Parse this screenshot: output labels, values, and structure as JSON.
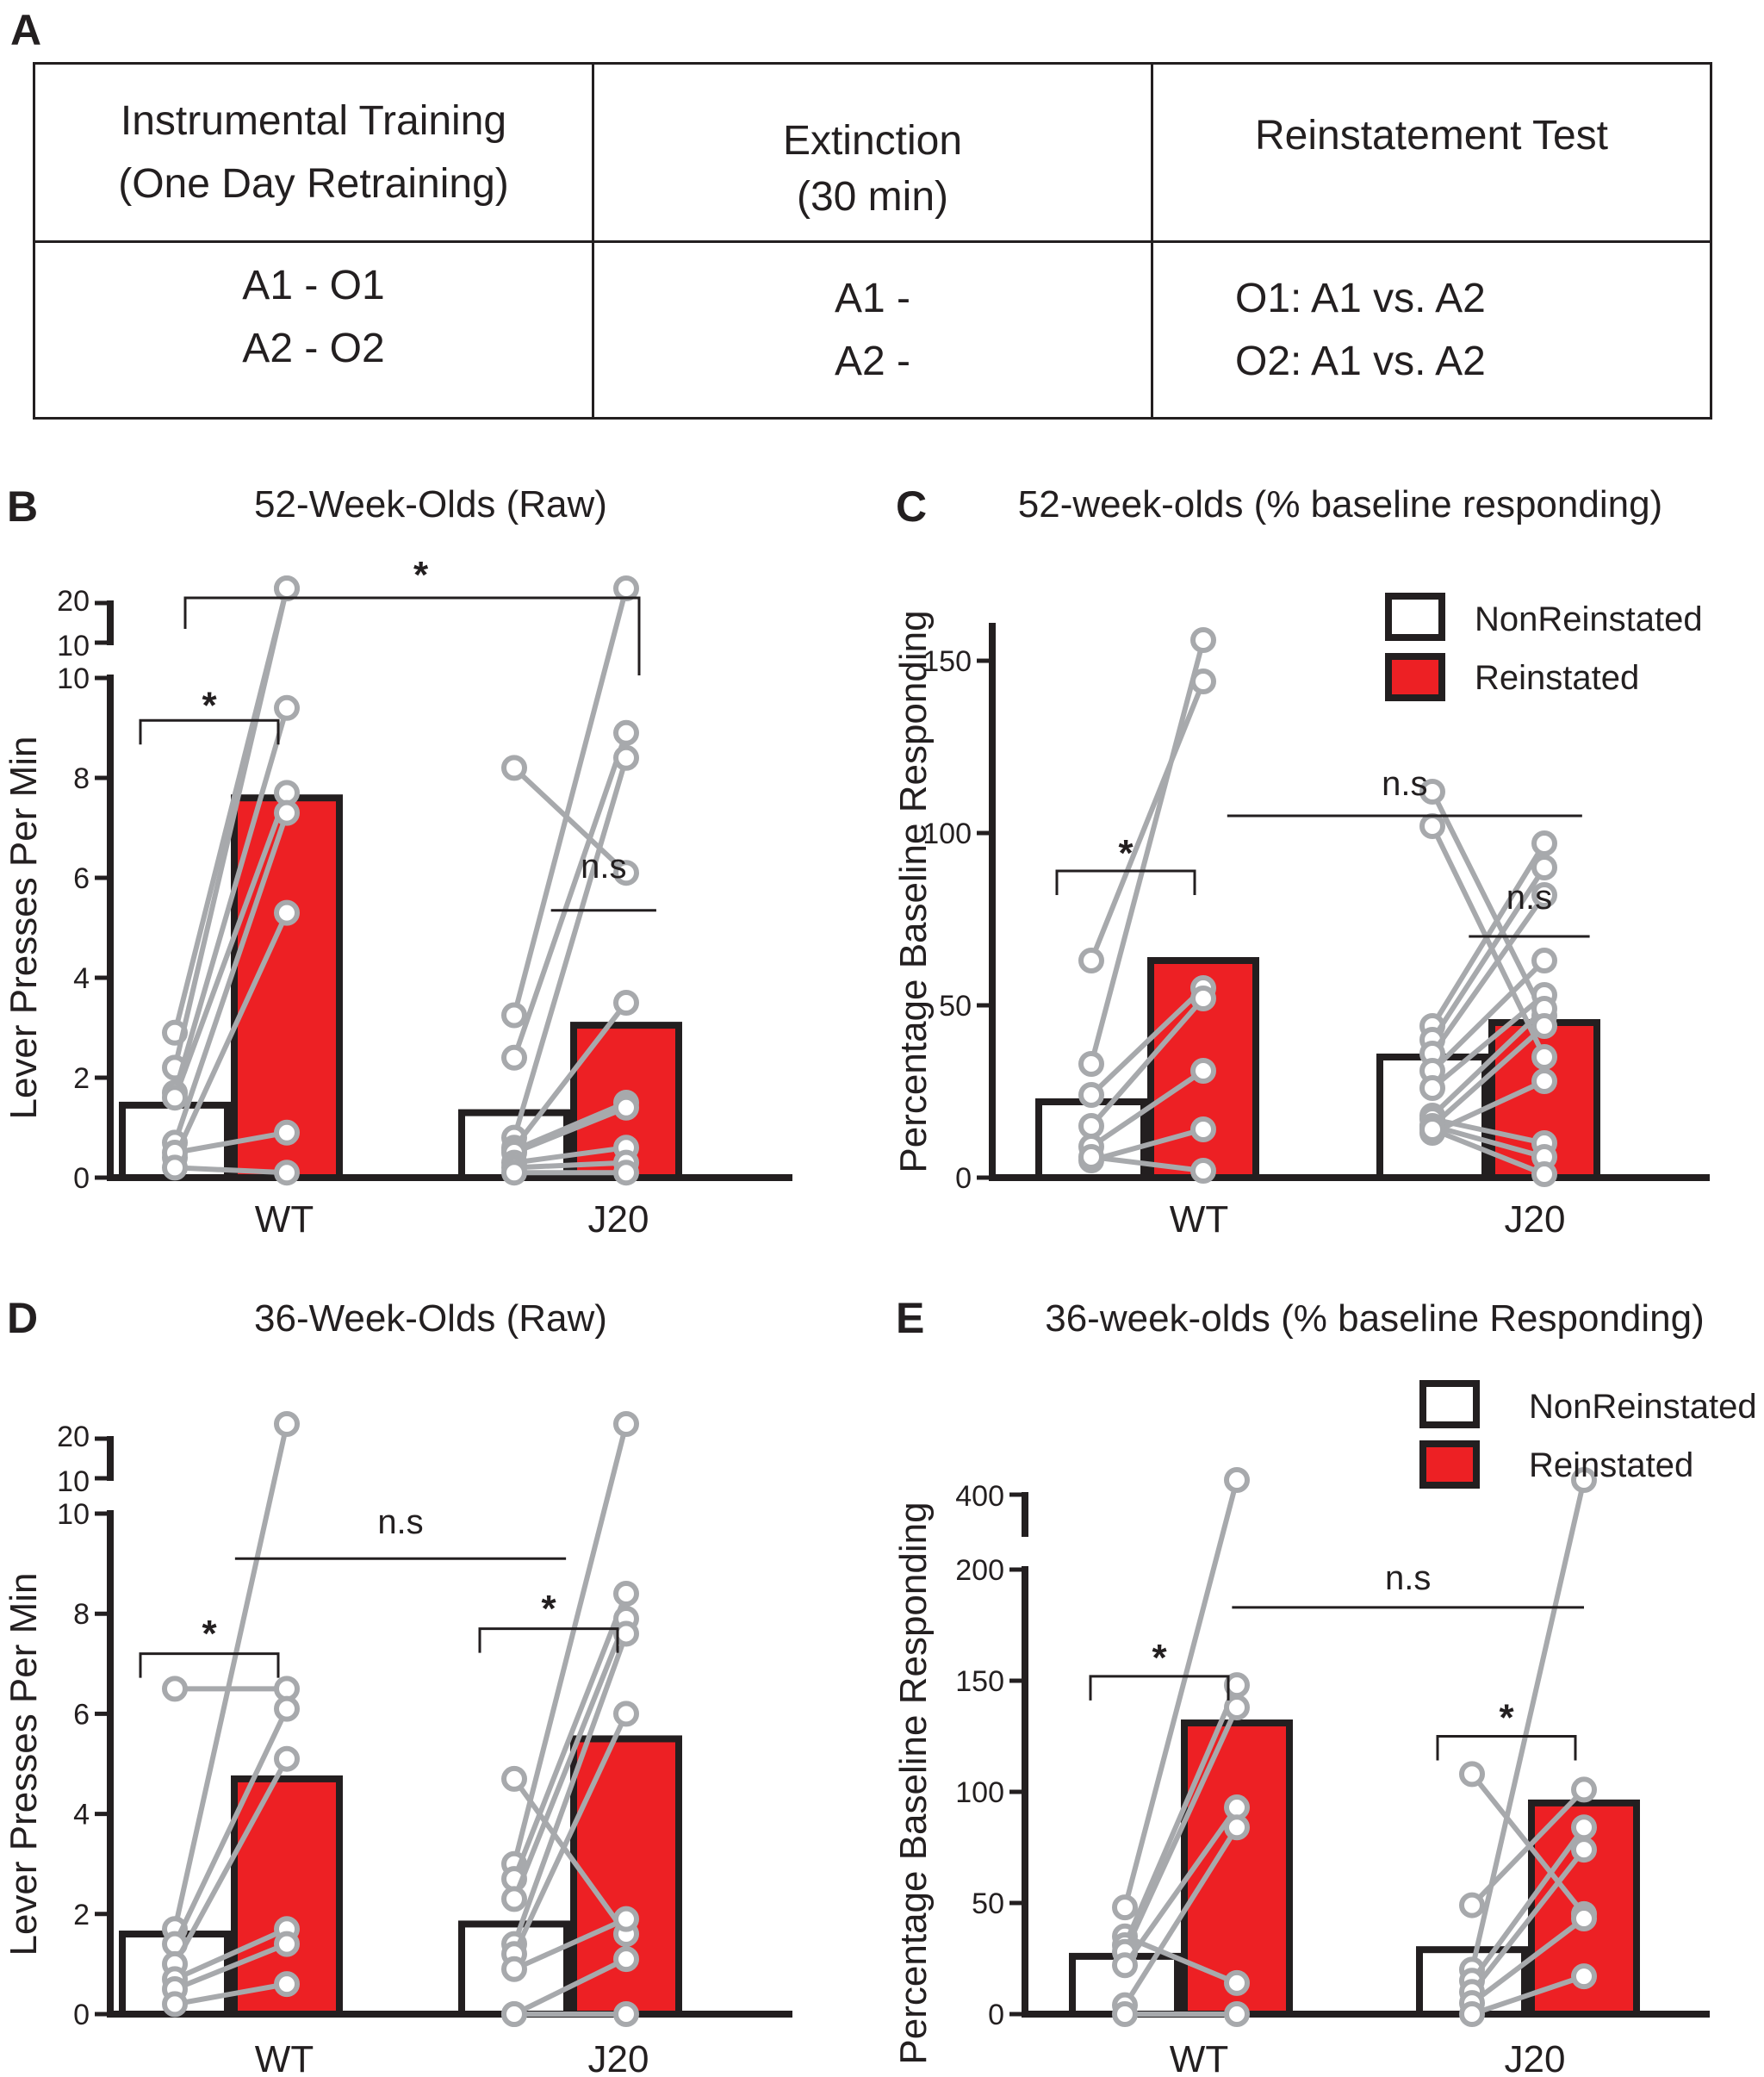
{
  "panels": {
    "A": "A",
    "B": "B",
    "C": "C",
    "D": "D",
    "E": "E"
  },
  "table": {
    "header": {
      "col1": [
        "Instrumental Training",
        "(One Day Retraining)"
      ],
      "col2": [
        "Extinction",
        "(30 min)"
      ],
      "col3": [
        "Reinstatement Test"
      ]
    },
    "body": {
      "col1": [
        "A1 - O1",
        "A2 - O2"
      ],
      "col2": [
        "A1 -",
        "A2 -"
      ],
      "col3": [
        "O1: A1 vs. A2",
        "O2: A1 vs. A2"
      ]
    }
  },
  "colors": {
    "nonreinstated": "#ffffff",
    "reinstated": "#ed2024",
    "outline": "#231f20",
    "points": "#a7a9ac"
  },
  "chart_data": [
    {
      "id": "B",
      "type": "bar",
      "title": "52-Week-Olds (Raw)",
      "ylabel": "Lever Presses Per Min",
      "xlabel": "",
      "categories": [
        "WT",
        "J20"
      ],
      "series": [
        {
          "name": "NonReinstated",
          "values": [
            1.45,
            1.3
          ]
        },
        {
          "name": "Reinstated",
          "values": [
            7.6,
            3.05
          ]
        }
      ],
      "ylim": [
        0,
        10
      ],
      "yticks": [
        0,
        2,
        4,
        6,
        8,
        10
      ],
      "break": {
        "labels": [
          "10",
          "20"
        ]
      },
      "pairs": [
        [
          [
            2.9,
            17.5
          ],
          [
            2.2,
            16.5
          ],
          [
            1.7,
            9.4
          ],
          [
            1.6,
            7.7
          ],
          [
            0.7,
            7.3
          ],
          [
            0.4,
            5.3
          ],
          [
            0.5,
            0.9
          ],
          [
            0.2,
            0.1
          ]
        ],
        [
          [
            8.2,
            6.1
          ],
          [
            3.25,
            16.5
          ],
          [
            2.4,
            8.9
          ],
          [
            0.8,
            8.4
          ],
          [
            0.6,
            3.5
          ],
          [
            0.55,
            1.5
          ],
          [
            0.5,
            1.4
          ],
          [
            0.3,
            0.6
          ],
          [
            0.2,
            0.3
          ],
          [
            0.1,
            0.1
          ]
        ]
      ],
      "annotations": [
        {
          "text": "*",
          "type": "bracket",
          "x1": 0,
          "x2": 1,
          "y": 9.15,
          "lbl": 9.3
        },
        {
          "text": "n.s",
          "type": "line",
          "x1": 2.5,
          "x2": 3.2,
          "y": 5.35,
          "lbl": 6.0
        },
        {
          "text": "*",
          "type": "topbracket",
          "x1": 0,
          "x2": 3,
          "y": 1,
          "lbl": 1
        }
      ]
    },
    {
      "id": "C",
      "type": "bar",
      "title": "52-week-olds (% baseline responding)",
      "ylabel": "Percentage Baseline Responding",
      "xlabel": "",
      "categories": [
        "WT",
        "J20"
      ],
      "series": [
        {
          "name": "NonReinstated",
          "values": [
            22,
            35
          ]
        },
        {
          "name": "Reinstated",
          "values": [
            63,
            45
          ]
        }
      ],
      "ylim": [
        0,
        160
      ],
      "yticks": [
        0,
        50,
        100,
        150
      ],
      "legend": [
        "NonReinstated",
        "Reinstated"
      ],
      "pairs": [
        [
          [
            63,
            144
          ],
          [
            33,
            156
          ],
          [
            24,
            55
          ],
          [
            15,
            52
          ],
          [
            9,
            31
          ],
          [
            5,
            14
          ],
          [
            6,
            2
          ]
        ],
        [
          [
            112,
            47
          ],
          [
            102,
            35
          ],
          [
            44,
            97
          ],
          [
            40,
            90
          ],
          [
            36,
            82
          ],
          [
            31,
            63
          ],
          [
            26,
            53
          ],
          [
            18,
            49
          ],
          [
            15,
            44
          ],
          [
            13,
            28
          ],
          [
            17,
            10
          ],
          [
            15,
            6
          ],
          [
            14,
            1
          ]
        ]
      ],
      "annotations": [
        {
          "text": "*",
          "type": "bracket",
          "x1": 0,
          "x2": 1,
          "y": 89,
          "lbl": 92
        },
        {
          "text": "n.s",
          "type": "line",
          "x1": 0.9,
          "x2": 3.25,
          "y": 105,
          "lbl": 111
        },
        {
          "text": "n.s",
          "type": "line",
          "x1": 2.5,
          "x2": 3.3,
          "y": 70,
          "lbl": 78
        }
      ]
    },
    {
      "id": "D",
      "type": "bar",
      "title": "36-Week-Olds (Raw)",
      "ylabel": "Lever Presses Per Min",
      "xlabel": "",
      "categories": [
        "WT",
        "J20"
      ],
      "series": [
        {
          "name": "NonReinstated",
          "values": [
            1.6,
            1.8
          ]
        },
        {
          "name": "Reinstated",
          "values": [
            4.7,
            5.5
          ]
        }
      ],
      "ylim": [
        0,
        10
      ],
      "yticks": [
        0,
        2,
        4,
        6,
        8,
        10
      ],
      "break": {
        "labels": [
          "10",
          "20"
        ]
      },
      "pairs": [
        [
          [
            6.5,
            6.5
          ],
          [
            1.7,
            15.5
          ],
          [
            1.4,
            6.1
          ],
          [
            1.0,
            5.1
          ],
          [
            0.7,
            1.7
          ],
          [
            0.5,
            1.4
          ],
          [
            0.2,
            0.6
          ]
        ],
        [
          [
            4.7,
            1.6
          ],
          [
            3.0,
            18.5
          ],
          [
            2.7,
            8.4
          ],
          [
            2.3,
            7.9
          ],
          [
            1.4,
            7.6
          ],
          [
            1.2,
            6.0
          ],
          [
            0.9,
            1.9
          ],
          [
            0.0,
            1.1
          ],
          [
            0.0,
            0.0
          ]
        ]
      ],
      "annotations": [
        {
          "text": "*",
          "type": "bracket",
          "x1": 0,
          "x2": 1,
          "y": 7.2,
          "lbl": 7.45
        },
        {
          "text": "*",
          "type": "bracket",
          "x1": 2,
          "x2": 3,
          "y": 7.7,
          "lbl": 7.95
        },
        {
          "text": "n.s",
          "type": "line",
          "x1": 0.4,
          "x2": 2.6,
          "y": 9.1,
          "lbl": 9.6
        }
      ]
    },
    {
      "id": "E",
      "type": "bar",
      "title": "36-week-olds (% baseline Responding)",
      "ylabel": "Percentage Baseline Responding",
      "xlabel": "",
      "categories": [
        "WT",
        "J20"
      ],
      "series": [
        {
          "name": "NonReinstated",
          "values": [
            26,
            29
          ]
        },
        {
          "name": "Reinstated",
          "values": [
            131,
            95
          ]
        }
      ],
      "ylim": [
        0,
        200
      ],
      "yticks": [
        0,
        50,
        100,
        150,
        200
      ],
      "break": {
        "labels": [
          "400"
        ]
      },
      "legend": [
        "NonReinstated",
        "Reinstated"
      ],
      "pairs": [
        [
          [
            48,
            420
          ],
          [
            35,
            14
          ],
          [
            31,
            148
          ],
          [
            28,
            138
          ],
          [
            22,
            93
          ],
          [
            4,
            84
          ],
          [
            0,
            0
          ]
        ],
        [
          [
            108,
            45
          ],
          [
            49,
            101
          ],
          [
            20,
            375
          ],
          [
            15,
            84
          ],
          [
            10,
            74
          ],
          [
            5,
            43
          ],
          [
            0,
            17
          ]
        ]
      ],
      "annotations": [
        {
          "text": "*",
          "type": "bracket",
          "x1": 0,
          "x2": 1,
          "y": 152,
          "lbl": 157
        },
        {
          "text": "*",
          "type": "bracket",
          "x1": 2,
          "x2": 3,
          "y": 125,
          "lbl": 130
        },
        {
          "text": "n.s",
          "type": "line",
          "x1": 0.7,
          "x2": 3.0,
          "y": 183,
          "lbl": 191
        }
      ]
    }
  ]
}
